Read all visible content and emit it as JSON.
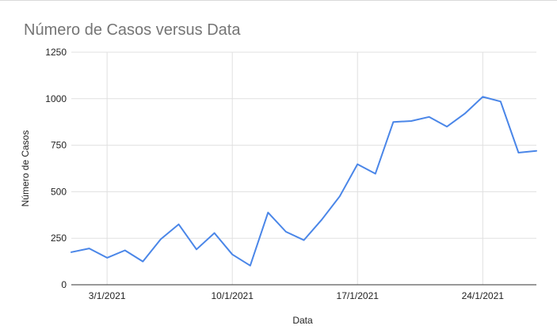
{
  "chart_data": {
    "type": "line",
    "title": "Número de Casos versus Data",
    "xlabel": "Data",
    "ylabel": "Número de Casos",
    "ylim": [
      0,
      1250
    ],
    "y_ticks": [
      0,
      250,
      500,
      750,
      1000,
      1250
    ],
    "y_tick_labels": [
      "0",
      "250",
      "500",
      "750",
      "1000",
      "1250"
    ],
    "x_day_range": [
      1,
      27
    ],
    "x_ticks": [
      {
        "day": 3,
        "label": "3/1/2021"
      },
      {
        "day": 10,
        "label": "10/1/2021"
      },
      {
        "day": 17,
        "label": "17/1/2021"
      },
      {
        "day": 24,
        "label": "24/1/2021"
      }
    ],
    "grid": true,
    "series": [
      {
        "name": "Número de Casos",
        "color": "#4a86e8",
        "x": [
          1,
          2,
          3,
          4,
          5,
          6,
          7,
          8,
          9,
          10,
          11,
          12,
          13,
          14,
          15,
          16,
          17,
          18,
          19,
          20,
          21,
          22,
          23,
          24,
          25,
          26,
          27
        ],
        "values": [
          175,
          195,
          145,
          185,
          125,
          245,
          325,
          190,
          278,
          163,
          103,
          388,
          285,
          240,
          350,
          475,
          648,
          597,
          875,
          880,
          902,
          850,
          920,
          1010,
          985,
          710,
          720
        ]
      }
    ]
  }
}
